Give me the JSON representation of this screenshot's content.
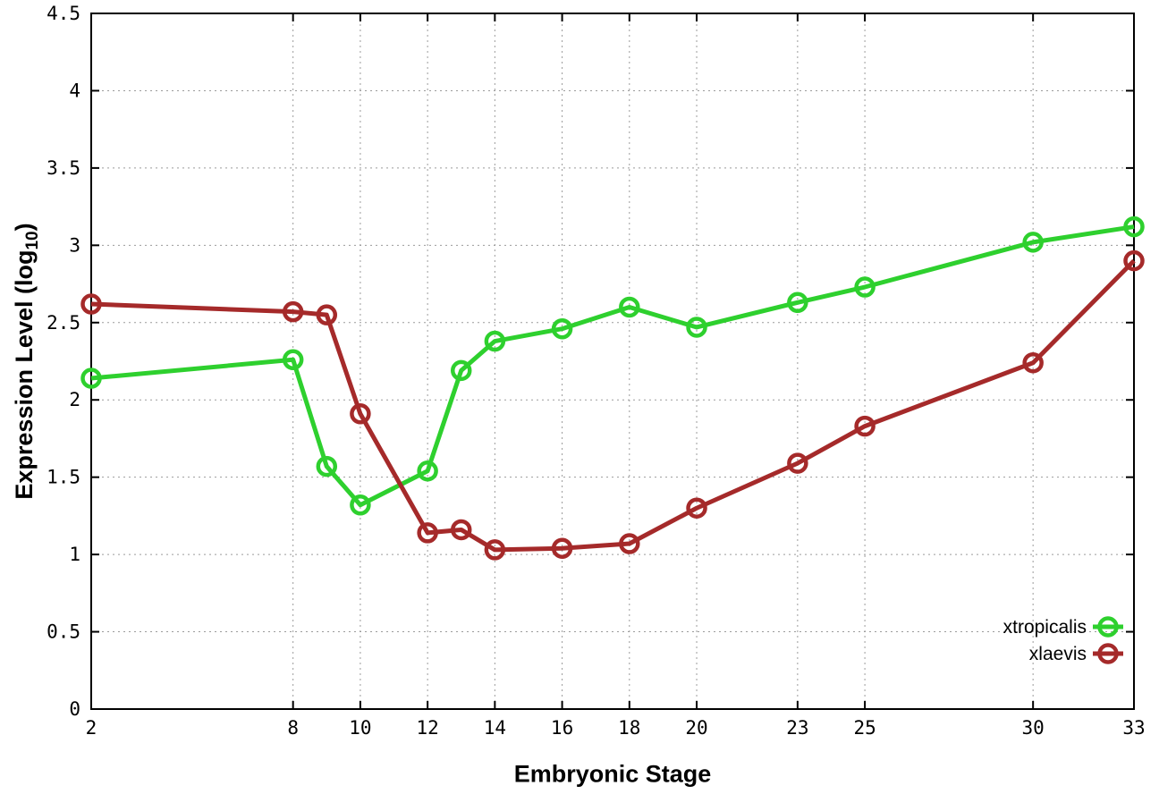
{
  "chart_data": {
    "type": "line",
    "title": "",
    "xlabel": "Embryonic Stage",
    "ylabel": "Expression Level (log10)",
    "ylabel_parts": {
      "base": "Expression Level (log",
      "sub": "10",
      "close": ")"
    },
    "xlim": [
      2,
      33
    ],
    "ylim": [
      0,
      4.5
    ],
    "grid": true,
    "grid_style": "dotted",
    "legend_position": "inside-bottom-right",
    "x_ticks": [
      "2",
      "8",
      "10",
      "12",
      "14",
      "16",
      "18",
      "20",
      "23",
      "25",
      "30",
      "33"
    ],
    "y_ticks": [
      "0",
      "0.5",
      "1",
      "1.5",
      "2",
      "2.5",
      "3",
      "3.5",
      "4",
      "4.5"
    ],
    "x": [
      2,
      8,
      9,
      10,
      12,
      13,
      14,
      16,
      18,
      20,
      23,
      25,
      30,
      33
    ],
    "series": [
      {
        "name": "xtropicalis",
        "color": "#2ed02e",
        "marker": "open-circle",
        "values": [
          2.14,
          2.26,
          1.57,
          1.32,
          1.54,
          2.19,
          2.38,
          2.46,
          2.6,
          2.47,
          2.63,
          2.73,
          3.02,
          3.12
        ]
      },
      {
        "name": "xlaevis",
        "color": "#a52a2a",
        "marker": "open-circle",
        "values": [
          2.62,
          2.57,
          2.55,
          1.91,
          1.14,
          1.16,
          1.03,
          1.04,
          1.07,
          1.3,
          1.59,
          1.83,
          2.24,
          2.9
        ]
      }
    ]
  },
  "colors": {
    "background": "#ffffff",
    "border": "#000000",
    "grid": "#9b9b9b",
    "text": "#000000"
  }
}
